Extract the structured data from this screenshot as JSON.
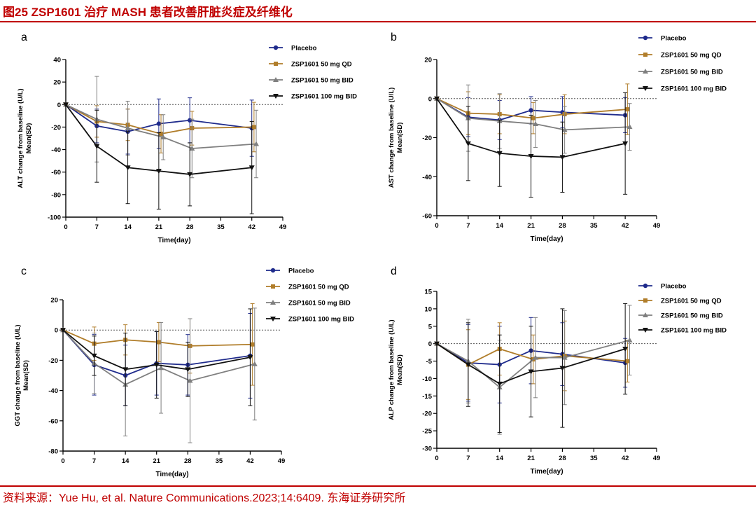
{
  "figure": {
    "title": "图25 ZSP1601 治疗 MASH 患者改善肝脏炎症及纤维化",
    "source": "资料来源：Yue Hu, et al. Nature Communications.2023;14:6409. 东海证券研究所"
  },
  "colors": {
    "brand_red": "#c00000",
    "placebo": "#1f2b8c",
    "qd50": "#b07d2a",
    "bid50": "#7f7f7f",
    "bid100": "#111111"
  },
  "chart_data": [
    {
      "panel": "a",
      "type": "line",
      "xlabel": "Time(day)",
      "ylabel": [
        "ALT change from baseline (U/L)",
        "Mean(SD)"
      ],
      "xlim": [
        0,
        49
      ],
      "xticks": [
        0,
        7,
        14,
        21,
        28,
        35,
        42,
        49
      ],
      "ylim": [
        -100,
        40
      ],
      "yticks": [
        -100,
        -80,
        -60,
        -40,
        -20,
        0,
        20,
        40
      ],
      "baseline": 0,
      "legend_position": "top-right",
      "series": [
        {
          "name": "Placebo",
          "marker": "circle",
          "x": [
            0,
            7,
            14,
            21,
            28,
            42
          ],
          "y": [
            0,
            -19,
            -24,
            -17,
            -14,
            -21
          ],
          "sd": [
            0,
            15,
            20,
            22,
            20,
            25
          ]
        },
        {
          "name": "ZSP1601 50 mg QD",
          "marker": "square",
          "x": [
            0,
            7,
            14,
            21.5,
            28.5,
            42.5
          ],
          "y": [
            0,
            -15,
            -18,
            -26,
            -21,
            -20
          ],
          "sd": [
            0,
            14,
            14,
            17,
            15,
            22
          ]
        },
        {
          "name": "ZSP1601 50 mg BID",
          "marker": "triangle-up",
          "x": [
            0,
            7,
            14,
            22,
            28.5,
            43
          ],
          "y": [
            0,
            -13,
            -21,
            -29,
            -39,
            -35
          ],
          "sd": [
            0,
            38,
            24,
            20,
            26,
            30
          ]
        },
        {
          "name": "ZSP1601 100 mg BID",
          "marker": "triangle-down",
          "x": [
            0,
            7,
            14,
            21,
            28,
            42
          ],
          "y": [
            0,
            -37,
            -56,
            -59,
            -62,
            -56
          ],
          "sd": [
            0,
            32,
            32,
            34,
            28,
            41
          ]
        }
      ]
    },
    {
      "panel": "b",
      "type": "line",
      "xlabel": "Time(day)",
      "ylabel": [
        "AST change from baseline (U/L)",
        "Mean(SD)"
      ],
      "xlim": [
        0,
        49
      ],
      "xticks": [
        0,
        7,
        14,
        21,
        28,
        35,
        42,
        49
      ],
      "ylim": [
        -60,
        20
      ],
      "yticks": [
        -60,
        -40,
        -20,
        0,
        20
      ],
      "baseline": 0,
      "legend_position": "top-right",
      "series": [
        {
          "name": "Placebo",
          "marker": "circle",
          "x": [
            0,
            7,
            14,
            21,
            28,
            42
          ],
          "y": [
            0,
            -9.5,
            -11,
            -6,
            -7,
            -8.5
          ],
          "sd": [
            0,
            10,
            10,
            7,
            8,
            9
          ]
        },
        {
          "name": "ZSP1601 50 mg QD",
          "marker": "square",
          "x": [
            0,
            7,
            14,
            21.5,
            28.5,
            42.5
          ],
          "y": [
            0,
            -7.5,
            -8,
            -10,
            -8,
            -5.5
          ],
          "sd": [
            0,
            11,
            10,
            8,
            10,
            13
          ]
        },
        {
          "name": "ZSP1601 50 mg BID",
          "marker": "triangle-up",
          "x": [
            0,
            7,
            14,
            22,
            28.5,
            43
          ],
          "y": [
            0,
            -10,
            -11.5,
            -13,
            -16,
            -14.5
          ],
          "sd": [
            0,
            17,
            14,
            12,
            12,
            12
          ]
        },
        {
          "name": "ZSP1601 100 mg BID",
          "marker": "triangle-down",
          "x": [
            0,
            7,
            14,
            21,
            28,
            42
          ],
          "y": [
            0,
            -23,
            -28,
            -29.5,
            -30,
            -23
          ],
          "sd": [
            0,
            19,
            17,
            21,
            18,
            26
          ]
        }
      ]
    },
    {
      "panel": "c",
      "type": "line",
      "xlabel": "Time(day)",
      "ylabel": [
        "GGT change from baseline (U/L)",
        "Mean(SD)"
      ],
      "xlim": [
        0,
        49
      ],
      "xticks": [
        0,
        7,
        14,
        21,
        28,
        35,
        42,
        49
      ],
      "ylim": [
        -80,
        20
      ],
      "yticks": [
        -80,
        -60,
        -40,
        -20,
        0,
        20
      ],
      "baseline": 0,
      "legend_position": "top-right",
      "series": [
        {
          "name": "Placebo",
          "marker": "circle",
          "x": [
            0,
            7,
            14,
            21,
            28,
            42
          ],
          "y": [
            0,
            -23,
            -30,
            -22,
            -23,
            -17
          ],
          "sd": [
            0,
            20,
            20,
            21,
            20,
            28
          ]
        },
        {
          "name": "ZSP1601 50 mg QD",
          "marker": "square",
          "x": [
            0,
            7,
            14,
            21.5,
            28.5,
            42.5
          ],
          "y": [
            0,
            -9,
            -6.5,
            -8,
            -10.5,
            -9.5
          ],
          "sd": [
            0,
            11,
            10,
            13,
            18,
            27
          ]
        },
        {
          "name": "ZSP1601 50 mg BID",
          "marker": "triangle-up",
          "x": [
            0,
            7,
            14,
            22,
            28.5,
            43
          ],
          "y": [
            0,
            -22,
            -36,
            -25,
            -33.5,
            -22.5
          ],
          "sd": [
            0,
            20,
            34,
            30,
            41,
            37
          ]
        },
        {
          "name": "ZSP1601 100 mg BID",
          "marker": "triangle-down",
          "x": [
            0,
            7,
            14,
            21,
            28,
            42
          ],
          "y": [
            0,
            -17,
            -26,
            -23,
            -26,
            -18
          ],
          "sd": [
            0,
            13,
            24,
            22,
            18,
            32
          ]
        }
      ]
    },
    {
      "panel": "d",
      "type": "line",
      "xlabel": "Time(day)",
      "ylabel": [
        "ALP change from baseline (U/L)",
        "Mean(SD)"
      ],
      "xlim": [
        0,
        49
      ],
      "xticks": [
        0,
        7,
        14,
        21,
        28,
        35,
        42,
        49
      ],
      "ylim": [
        -30,
        15
      ],
      "yticks": [
        -30,
        -25,
        -20,
        -15,
        -10,
        -5,
        0,
        5,
        10,
        15
      ],
      "baseline": 0,
      "legend_position": "top-right",
      "series": [
        {
          "name": "Placebo",
          "marker": "circle",
          "x": [
            0,
            7,
            14,
            21,
            28,
            42
          ],
          "y": [
            0,
            -5.5,
            -6,
            -2,
            -3,
            -5.5
          ],
          "sd": [
            0,
            11,
            11,
            9.5,
            9,
            7
          ]
        },
        {
          "name": "ZSP1601 50 mg QD",
          "marker": "square",
          "x": [
            0,
            7,
            14,
            21.5,
            28.5,
            42.5
          ],
          "y": [
            0,
            -6,
            -1.5,
            -4.5,
            -3.5,
            -5
          ],
          "sd": [
            0,
            10,
            7.5,
            7,
            10,
            6
          ]
        },
        {
          "name": "ZSP1601 50 mg BID",
          "marker": "triangle-up",
          "x": [
            0,
            7,
            14,
            22,
            28.5,
            43
          ],
          "y": [
            0,
            -5,
            -12.5,
            -4,
            -4,
            1
          ],
          "sd": [
            0,
            12,
            13.5,
            11.5,
            13.5,
            10
          ]
        },
        {
          "name": "ZSP1601 100 mg BID",
          "marker": "triangle-down",
          "x": [
            0,
            7,
            14,
            21,
            28,
            42
          ],
          "y": [
            0,
            -6,
            -11.5,
            -8,
            -7,
            -1.5
          ],
          "sd": [
            0,
            12,
            14,
            13,
            17,
            13
          ]
        }
      ]
    }
  ]
}
